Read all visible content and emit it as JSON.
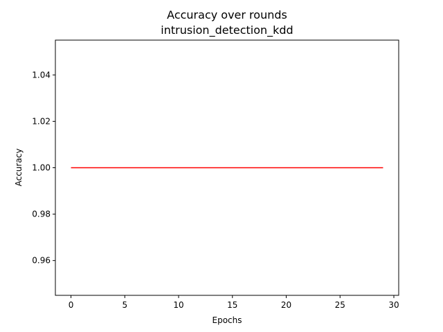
{
  "chart_data": {
    "type": "line",
    "title": "Accuracy over rounds",
    "subtitle": "intrusion_detection_kdd",
    "xlabel": "Epochs",
    "ylabel": "Accuracy",
    "xlim": [
      -1.45,
      30.45
    ],
    "ylim": [
      0.945,
      1.055
    ],
    "xticks": [
      0,
      5,
      10,
      15,
      20,
      25,
      30
    ],
    "xtick_labels": [
      "0",
      "5",
      "10",
      "15",
      "20",
      "25",
      "30"
    ],
    "yticks": [
      0.96,
      0.98,
      1.0,
      1.02,
      1.04
    ],
    "ytick_labels": [
      "0.96",
      "0.98",
      "1.00",
      "1.02",
      "1.04"
    ],
    "grid": false,
    "series": [
      {
        "color": "#ff0000",
        "x": [
          0,
          1,
          2,
          3,
          4,
          5,
          6,
          7,
          8,
          9,
          10,
          11,
          12,
          13,
          14,
          15,
          16,
          17,
          18,
          19,
          20,
          21,
          22,
          23,
          24,
          25,
          26,
          27,
          28,
          29
        ],
        "values": [
          1,
          1,
          1,
          1,
          1,
          1,
          1,
          1,
          1,
          1,
          1,
          1,
          1,
          1,
          1,
          1,
          1,
          1,
          1,
          1,
          1,
          1,
          1,
          1,
          1,
          1,
          1,
          1,
          1,
          1
        ]
      }
    ]
  }
}
